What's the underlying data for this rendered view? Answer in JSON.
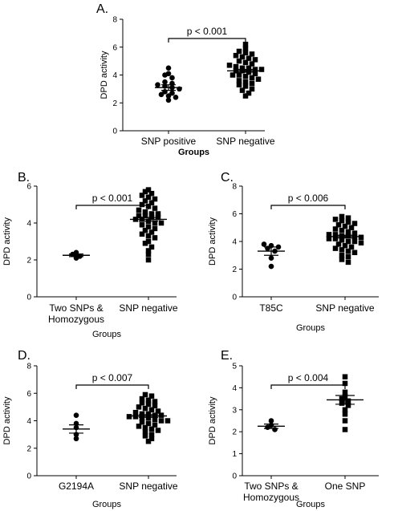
{
  "chart_data": [
    {
      "type": "scatter",
      "panel_label": "A.",
      "ylabel": "DPD activity",
      "xlabel": "Groups",
      "xlabel_bold": true,
      "ylim": [
        0,
        8
      ],
      "yticks": [
        0,
        2,
        4,
        6,
        8
      ],
      "categories": [
        "SNP positive",
        "SNP negative"
      ],
      "annotation": "p < 0.001",
      "series": [
        {
          "marker": "circle",
          "mean": 3.1,
          "sem": 0.2,
          "values": [
            4.5,
            4.1,
            4.0,
            3.8,
            3.5,
            3.4,
            3.3,
            3.2,
            3.1,
            3.0,
            2.8,
            2.7,
            2.6,
            2.5,
            2.4,
            2.2
          ]
        },
        {
          "marker": "square",
          "mean": 4.3,
          "sem": 0.1,
          "values": [
            6.2,
            5.9,
            5.7,
            5.6,
            5.5,
            5.4,
            5.3,
            5.2,
            5.1,
            5.0,
            4.9,
            4.8,
            4.7,
            4.6,
            4.5,
            4.5,
            4.4,
            4.4,
            4.3,
            4.3,
            4.2,
            4.1,
            4.0,
            4.0,
            3.9,
            3.8,
            3.7,
            3.6,
            3.5,
            3.4,
            3.3,
            3.2,
            3.0,
            2.9,
            2.7,
            2.5
          ]
        }
      ]
    },
    {
      "type": "scatter",
      "panel_label": "B.",
      "ylabel": "DPD activity",
      "xlabel": "Groups",
      "ylim": [
        0,
        6
      ],
      "yticks": [
        0,
        2,
        4,
        6
      ],
      "categories": [
        "Two SNPs &\nHomozygous",
        "SNP negative"
      ],
      "annotation": "p < 0.001",
      "series": [
        {
          "marker": "circle",
          "mean": 2.25,
          "sem": 0.07,
          "values": [
            2.4,
            2.3,
            2.2,
            2.1
          ]
        },
        {
          "marker": "square",
          "mean": 4.2,
          "sem": 0.1,
          "values": [
            5.8,
            5.7,
            5.6,
            5.5,
            5.4,
            5.3,
            5.2,
            5.1,
            5.0,
            4.9,
            4.8,
            4.7,
            4.6,
            4.5,
            4.5,
            4.4,
            4.4,
            4.3,
            4.3,
            4.2,
            4.2,
            4.1,
            4.0,
            4.0,
            3.9,
            3.8,
            3.7,
            3.6,
            3.5,
            3.4,
            3.3,
            3.2,
            3.0,
            2.9,
            2.7,
            2.5,
            2.3,
            2.0
          ]
        }
      ]
    },
    {
      "type": "scatter",
      "panel_label": "C.",
      "ylabel": "DPD activity",
      "xlabel": "Groups",
      "ylim": [
        0,
        8
      ],
      "yticks": [
        0,
        2,
        4,
        6,
        8
      ],
      "categories": [
        "T85C",
        "SNP negative"
      ],
      "annotation": "p < 0.006",
      "series": [
        {
          "marker": "circle",
          "mean": 3.3,
          "sem": 0.3,
          "values": [
            3.8,
            3.7,
            3.6,
            3.5,
            3.3,
            2.8,
            2.2
          ]
        },
        {
          "marker": "square",
          "mean": 4.35,
          "sem": 0.1,
          "values": [
            5.8,
            5.7,
            5.6,
            5.5,
            5.4,
            5.3,
            5.2,
            5.1,
            5.0,
            4.9,
            4.8,
            4.7,
            4.6,
            4.5,
            4.5,
            4.4,
            4.4,
            4.3,
            4.3,
            4.2,
            4.2,
            4.1,
            4.0,
            4.0,
            3.9,
            3.8,
            3.7,
            3.6,
            3.5,
            3.4,
            3.3,
            3.2,
            3.0,
            2.9,
            2.7,
            2.5
          ]
        }
      ]
    },
    {
      "type": "scatter",
      "panel_label": "D.",
      "ylabel": "DPD activity",
      "xlabel": "Groups",
      "ylim": [
        0,
        8
      ],
      "yticks": [
        0,
        2,
        4,
        6,
        8
      ],
      "categories": [
        "G2194A",
        "SNP negative"
      ],
      "annotation": "p < 0.007",
      "series": [
        {
          "marker": "circle",
          "mean": 3.4,
          "sem": 0.3,
          "values": [
            4.4,
            3.8,
            3.5,
            3.0,
            2.7
          ]
        },
        {
          "marker": "square",
          "mean": 4.35,
          "sem": 0.1,
          "values": [
            5.9,
            5.8,
            5.6,
            5.5,
            5.4,
            5.3,
            5.2,
            5.1,
            5.0,
            4.9,
            4.8,
            4.7,
            4.6,
            4.5,
            4.5,
            4.4,
            4.4,
            4.3,
            4.3,
            4.2,
            4.2,
            4.1,
            4.0,
            4.0,
            3.9,
            3.8,
            3.7,
            3.6,
            3.5,
            3.4,
            3.3,
            3.2,
            3.0,
            2.9,
            2.7,
            2.5
          ]
        }
      ]
    },
    {
      "type": "scatter",
      "panel_label": "E.",
      "ylabel": "DPD activity",
      "xlabel": "Groups",
      "ylim": [
        0,
        5
      ],
      "yticks": [
        0,
        1,
        2,
        3,
        4,
        5
      ],
      "categories": [
        "Two SNPs &\nHomozygous",
        "One SNP"
      ],
      "annotation": "p < 0.004",
      "series": [
        {
          "marker": "circle",
          "mean": 2.25,
          "sem": 0.1,
          "values": [
            2.5,
            2.3,
            2.2,
            2.1
          ]
        },
        {
          "marker": "square",
          "mean": 3.45,
          "sem": 0.2,
          "values": [
            4.5,
            4.2,
            3.8,
            3.6,
            3.5,
            3.4,
            3.3,
            3.2,
            3.0,
            2.8,
            2.5,
            2.1
          ]
        }
      ]
    }
  ]
}
